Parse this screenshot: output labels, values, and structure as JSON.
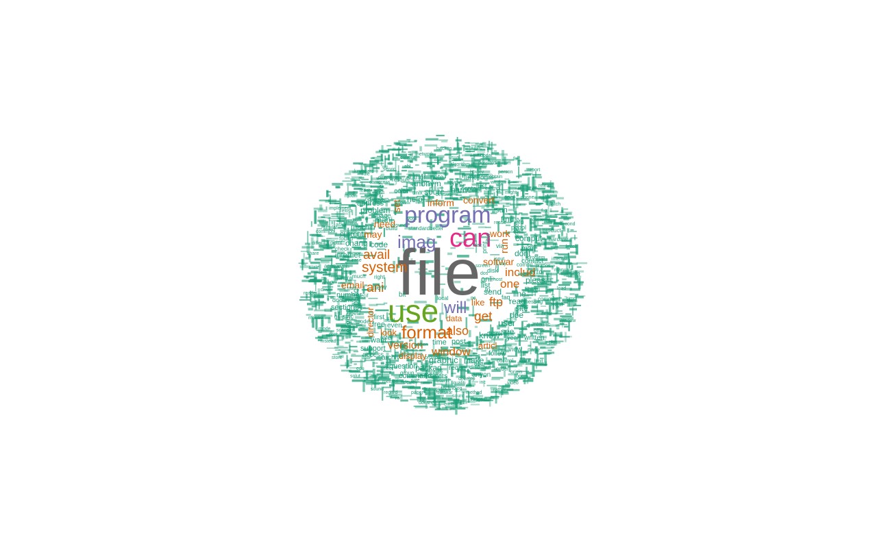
{
  "palette": {
    "gray": "#666666",
    "pink": "#e7298a",
    "purple": "#7570b3",
    "green": "#66a61e",
    "orange": "#d95f02",
    "teal": "#1b9e77"
  },
  "words": [
    {
      "text": "file",
      "color": "gray"
    },
    {
      "text": "can",
      "color": "pink"
    },
    {
      "text": "program",
      "color": "purple"
    },
    {
      "text": "imag",
      "color": "purple"
    },
    {
      "text": "use",
      "color": "green"
    },
    {
      "text": "will",
      "color": "purple"
    },
    {
      "text": "format",
      "color": "orange"
    },
    {
      "text": "also",
      "color": "orange"
    },
    {
      "text": "window",
      "color": "orange"
    },
    {
      "text": "version",
      "color": "orange"
    },
    {
      "text": "system",
      "color": "orange"
    },
    {
      "text": "avail",
      "color": "orange"
    },
    {
      "text": "ani",
      "color": "orange"
    },
    {
      "text": "get",
      "color": "orange"
    },
    {
      "text": "ftp",
      "color": "orange"
    },
    {
      "text": "includ",
      "color": "orange"
    },
    {
      "text": "one",
      "color": "orange"
    },
    {
      "text": "work",
      "color": "orange"
    },
    {
      "text": "run",
      "color": "orange"
    },
    {
      "text": "softwar",
      "color": "orange"
    },
    {
      "text": "inform",
      "color": "orange"
    },
    {
      "text": "convert",
      "color": "orange"
    },
    {
      "text": "need",
      "color": "orange"
    },
    {
      "text": "may",
      "color": "orange"
    },
    {
      "text": "email",
      "color": "orange"
    },
    {
      "text": "set",
      "color": "orange"
    },
    {
      "text": "look",
      "color": "orange"
    },
    {
      "text": "display",
      "color": "orange"
    },
    {
      "text": "articl",
      "color": "orange"
    },
    {
      "text": "like",
      "color": "orange"
    },
    {
      "text": "data",
      "color": "orange"
    },
    {
      "text": "director",
      "color": "orange"
    },
    {
      "text": "graphic",
      "color": "teal"
    },
    {
      "text": "packag",
      "color": "teal"
    },
    {
      "text": "make",
      "color": "teal"
    },
    {
      "text": "post",
      "color": "teal"
    },
    {
      "text": "time",
      "color": "teal"
    },
    {
      "text": "know",
      "color": "teal"
    },
    {
      "text": "see",
      "color": "teal"
    },
    {
      "text": "user",
      "color": "teal"
    },
    {
      "text": "doe",
      "color": "teal"
    },
    {
      "text": "site",
      "color": "teal"
    },
    {
      "text": "read",
      "color": "teal"
    },
    {
      "text": "line",
      "color": "teal"
    },
    {
      "text": "send",
      "color": "teal"
    },
    {
      "text": "onli",
      "color": "teal"
    },
    {
      "text": "list",
      "color": "teal"
    },
    {
      "text": "pleas",
      "color": "teal"
    },
    {
      "text": "dont",
      "color": "teal"
    },
    {
      "text": "mail",
      "color": "teal"
    },
    {
      "text": "comput",
      "color": "teal"
    },
    {
      "text": "find",
      "color": "teal"
    },
    {
      "text": "sun",
      "color": "teal"
    },
    {
      "text": "help",
      "color": "teal"
    },
    {
      "text": "sourc",
      "color": "teal"
    },
    {
      "text": "name",
      "color": "teal"
    },
    {
      "text": "anonym",
      "color": "teal"
    },
    {
      "text": "problem",
      "color": "teal"
    },
    {
      "text": "mani",
      "color": "teal"
    },
    {
      "text": "code",
      "color": "teal"
    },
    {
      "text": "current",
      "color": "teal"
    },
    {
      "text": "machin",
      "color": "teal"
    },
    {
      "text": "chang",
      "color": "teal"
    },
    {
      "text": "internet",
      "color": "teal"
    },
    {
      "text": "address",
      "color": "teal"
    },
    {
      "text": "number",
      "color": "teal"
    },
    {
      "text": "new",
      "color": "teal"
    },
    {
      "text": "applic",
      "color": "teal"
    },
    {
      "text": "way",
      "color": "teal"
    },
    {
      "text": "section",
      "color": "teal"
    },
    {
      "text": "free",
      "color": "teal"
    },
    {
      "text": "want",
      "color": "teal"
    },
    {
      "text": "support",
      "color": "teal"
    },
    {
      "text": "archiv",
      "color": "teal"
    },
    {
      "text": "question",
      "color": "teal"
    },
    {
      "text": "command",
      "color": "teal"
    },
    {
      "text": "univers",
      "color": "teal"
    },
    {
      "text": "requir",
      "color": "teal"
    },
    {
      "text": "anyon",
      "color": "teal"
    },
    {
      "text": "follow",
      "color": "teal"
    },
    {
      "text": "view",
      "color": "teal"
    },
    {
      "text": "written",
      "color": "teal"
    },
    {
      "text": "error",
      "color": "teal"
    },
    {
      "text": "contact",
      "color": "teal"
    },
    {
      "text": "call",
      "color": "teal"
    },
    {
      "text": "color",
      "color": "teal"
    },
    {
      "text": "server",
      "color": "teal"
    },
    {
      "text": "type",
      "color": "teal"
    },
    {
      "text": "function",
      "color": "teal"
    },
    {
      "text": "author",
      "color": "teal"
    },
    {
      "text": "note",
      "color": "teal"
    },
    {
      "text": "just",
      "color": "teal"
    },
    {
      "text": "space",
      "color": "teal"
    },
    {
      "text": "good",
      "color": "teal"
    },
    {
      "text": "bit",
      "color": "teal"
    },
    {
      "text": "first",
      "color": "teal"
    },
    {
      "text": "even",
      "color": "teal"
    },
    {
      "text": "access",
      "color": "teal"
    },
    {
      "text": "distribut",
      "color": "teal"
    },
    {
      "text": "part",
      "color": "teal"
    },
    {
      "text": "thank",
      "color": "teal"
    },
    {
      "text": "peopl",
      "color": "teal"
    },
    {
      "text": "process",
      "color": "teal"
    },
    {
      "text": "librari",
      "color": "teal"
    },
    {
      "text": "info",
      "color": "teal"
    },
    {
      "text": "disk",
      "color": "teal"
    },
    {
      "text": "print",
      "color": "teal"
    },
    {
      "text": "via",
      "color": "teal"
    },
    {
      "text": "now",
      "color": "teal"
    },
    {
      "text": "tri",
      "color": "teal"
    },
    {
      "text": "faq",
      "color": "teal"
    },
    {
      "text": "year",
      "color": "teal"
    },
    {
      "text": "tool",
      "color": "teal"
    },
    {
      "text": "contain",
      "color": "teal"
    },
    {
      "text": "group",
      "color": "teal"
    },
    {
      "text": "output",
      "color": "teal"
    },
    {
      "text": "return",
      "color": "teal"
    },
    {
      "text": "document",
      "color": "teal"
    },
    {
      "text": "open",
      "color": "teal"
    },
    {
      "text": "sinc",
      "color": "teal"
    },
    {
      "text": "refer",
      "color": "teal"
    },
    {
      "text": "standard",
      "color": "teal"
    },
    {
      "text": "better",
      "color": "teal"
    },
    {
      "text": "build",
      "color": "teal"
    },
    {
      "text": "unix",
      "color": "teal"
    },
    {
      "text": "resourc",
      "color": "teal"
    },
    {
      "text": "general",
      "color": "teal"
    },
    {
      "text": "much",
      "color": "teal"
    },
    {
      "text": "right",
      "color": "teal"
    },
    {
      "text": "check",
      "color": "teal"
    },
    {
      "text": "found",
      "color": "teal"
    },
    {
      "text": "think",
      "color": "teal"
    },
    {
      "text": "point",
      "color": "teal"
    },
    {
      "text": "server",
      "color": "teal"
    },
    {
      "text": "model",
      "color": "teal"
    },
    {
      "text": "give",
      "color": "teal"
    },
    {
      "text": "compil",
      "color": "teal"
    },
    {
      "text": "interfac",
      "color": "teal"
    },
    {
      "text": "hardwar",
      "color": "teal"
    },
    {
      "text": "product",
      "color": "teal"
    },
    {
      "text": "appear",
      "color": "teal"
    },
    {
      "text": "messag",
      "color": "teal"
    },
    {
      "text": "comment",
      "color": "teal"
    },
    {
      "text": "local",
      "color": "teal"
    },
    {
      "text": "page",
      "color": "teal"
    },
    {
      "text": "control",
      "color": "teal"
    },
    {
      "text": "oper",
      "color": "teal"
    },
    {
      "text": "order",
      "color": "teal"
    },
    {
      "text": "offer",
      "color": "teal"
    },
    {
      "text": "video",
      "color": "teal"
    },
    {
      "text": "technolog",
      "color": "teal"
    },
    {
      "text": "develop",
      "color": "teal"
    },
    {
      "text": "qualiti",
      "color": "teal"
    },
    {
      "text": "softwar",
      "color": "teal"
    },
    {
      "text": "devic",
      "color": "teal"
    },
    {
      "text": "select",
      "color": "teal"
    },
    {
      "text": "exampl",
      "color": "teal"
    },
    {
      "text": "howev",
      "color": "teal"
    },
    {
      "text": "algorithm",
      "color": "teal"
    },
    {
      "text": "obtain",
      "color": "teal"
    },
    {
      "text": "window",
      "color": "teal"
    },
    {
      "text": "person",
      "color": "teal"
    },
    {
      "text": "news",
      "color": "teal"
    },
    {
      "text": "newsgroup",
      "color": "teal"
    },
    {
      "text": "keyboard",
      "color": "teal"
    },
    {
      "text": "purpos",
      "color": "teal"
    },
    {
      "text": "problem",
      "color": "teal"
    },
    {
      "text": "postscript",
      "color": "teal"
    },
    {
      "text": "save",
      "color": "teal"
    },
    {
      "text": "result",
      "color": "teal"
    },
    {
      "text": "might",
      "color": "teal"
    },
    {
      "text": "word",
      "color": "teal"
    },
    {
      "text": "around",
      "color": "teal"
    },
    {
      "text": "servic",
      "color": "teal"
    },
    {
      "text": "becaus",
      "color": "teal"
    },
    {
      "text": "possibl",
      "color": "teal"
    },
    {
      "text": "allow",
      "color": "teal"
    },
    {
      "text": "case",
      "color": "teal"
    },
    {
      "text": "start",
      "color": "teal"
    },
    {
      "text": "specif",
      "color": "teal"
    },
    {
      "text": "scanner",
      "color": "teal"
    },
    {
      "text": "mode",
      "color": "teal"
    },
    {
      "text": "text",
      "color": "teal"
    },
    {
      "text": "edit",
      "color": "teal"
    },
    {
      "text": "load",
      "color": "teal"
    },
    {
      "text": "manual",
      "color": "teal"
    },
    {
      "text": "featur",
      "color": "teal"
    },
    {
      "text": "screen",
      "color": "teal"
    },
    {
      "text": "mac",
      "color": "teal"
    },
    {
      "text": "pc",
      "color": "teal"
    },
    {
      "text": "dos",
      "color": "teal"
    },
    {
      "text": "copi",
      "color": "teal"
    },
    {
      "text": "host",
      "color": "teal"
    },
    {
      "text": "say",
      "color": "teal"
    },
    {
      "text": "input",
      "color": "teal"
    },
    {
      "text": "provid",
      "color": "teal"
    },
    {
      "text": "written",
      "color": "teal"
    },
    {
      "text": "size",
      "color": "teal"
    },
    {
      "text": "memori",
      "color": "teal"
    },
    {
      "text": "instal",
      "color": "teal"
    },
    {
      "text": "driver",
      "color": "teal"
    },
    {
      "text": "state",
      "color": "teal"
    },
    {
      "text": "differ",
      "color": "teal"
    },
    {
      "text": "similar",
      "color": "teal"
    },
    {
      "text": "exist",
      "color": "teal"
    },
    {
      "text": "modifi",
      "color": "teal"
    },
    {
      "text": "compress",
      "color": "teal"
    },
    {
      "text": "direct",
      "color": "teal"
    },
    {
      "text": "current",
      "color": "teal"
    },
    {
      "text": "network",
      "color": "teal"
    },
    {
      "text": "backup",
      "color": "teal"
    },
    {
      "text": "public",
      "color": "teal"
    },
    {
      "text": "updat",
      "color": "teal"
    },
    {
      "text": "fix",
      "color": "teal"
    },
    {
      "text": "report",
      "color": "teal"
    },
    {
      "text": "releas",
      "color": "teal"
    },
    {
      "text": "patch",
      "color": "teal"
    },
    {
      "text": "second",
      "color": "teal"
    },
    {
      "text": "level",
      "color": "teal"
    },
    {
      "text": "sever",
      "color": "teal"
    },
    {
      "text": "simpl",
      "color": "teal"
    },
    {
      "text": "window",
      "color": "teal"
    },
    {
      "text": "plot",
      "color": "teal"
    },
    {
      "text": "limit",
      "color": "teal"
    },
    {
      "text": "origin",
      "color": "teal"
    },
    {
      "text": "rather",
      "color": "teal"
    },
    {
      "text": "suggest",
      "color": "teal"
    },
    {
      "text": "either",
      "color": "teal"
    },
    {
      "text": "doesnt",
      "color": "teal"
    },
    {
      "text": "vari",
      "color": "teal"
    },
    {
      "text": "sound",
      "color": "teal"
    },
    {
      "text": "solut",
      "color": "teal"
    },
    {
      "text": "store",
      "color": "teal"
    },
    {
      "text": "instead",
      "color": "teal"
    },
    {
      "text": "mention",
      "color": "teal"
    },
    {
      "text": "reader",
      "color": "teal"
    },
    {
      "text": "share",
      "color": "teal"
    },
    {
      "text": "common",
      "color": "teal"
    },
    {
      "text": "implement",
      "color": "teal"
    },
    {
      "text": "rule",
      "color": "teal"
    },
    {
      "text": "consid",
      "color": "teal"
    },
    {
      "text": "sourc",
      "color": "teal"
    },
    {
      "text": "inc",
      "color": "teal"
    },
    {
      "text": "date",
      "color": "teal"
    },
    {
      "text": "enter",
      "color": "teal"
    },
    {
      "text": "interest",
      "color": "teal"
    },
    {
      "text": "fax",
      "color": "teal"
    },
    {
      "text": "phone",
      "color": "teal"
    },
    {
      "text": "directori",
      "color": "teal"
    },
    {
      "text": "usual",
      "color": "teal"
    },
    {
      "text": "abl",
      "color": "teal"
    },
    {
      "text": "least",
      "color": "teal"
    },
    {
      "text": "ask",
      "color": "teal"
    },
    {
      "text": "anoth",
      "color": "teal"
    },
    {
      "text": "cost",
      "color": "teal"
    },
    {
      "text": "edu",
      "color": "teal"
    },
    {
      "text": "regard",
      "color": "teal"
    },
    {
      "text": "paper",
      "color": "teal"
    },
    {
      "text": "method",
      "color": "teal"
    },
    {
      "text": "origin",
      "color": "teal"
    },
    {
      "text": "test",
      "color": "teal"
    },
    {
      "text": "end",
      "color": "teal"
    },
    {
      "text": "best",
      "color": "teal"
    },
    {
      "text": "real",
      "color": "teal"
    },
    {
      "text": "call",
      "color": "teal"
    },
    {
      "text": "option",
      "color": "teal"
    },
    {
      "text": "avail",
      "color": "teal"
    },
    {
      "text": "subject",
      "color": "teal"
    },
    {
      "text": "sampl",
      "color": "teal"
    },
    {
      "text": "design",
      "color": "teal"
    },
    {
      "text": "creat",
      "color": "teal"
    },
    {
      "text": "forward",
      "color": "teal"
    },
    {
      "text": "bug",
      "color": "teal"
    },
    {
      "text": "width",
      "color": "teal"
    },
    {
      "text": "height",
      "color": "teal"
    },
    {
      "text": "pixel",
      "color": "teal"
    },
    {
      "text": "jpeg",
      "color": "teal"
    },
    {
      "text": "gif",
      "color": "teal"
    },
    {
      "text": "tiff",
      "color": "teal"
    },
    {
      "text": "viewer",
      "color": "teal"
    },
    {
      "text": "render",
      "color": "teal"
    },
    {
      "text": "window",
      "color": "teal"
    }
  ]
}
